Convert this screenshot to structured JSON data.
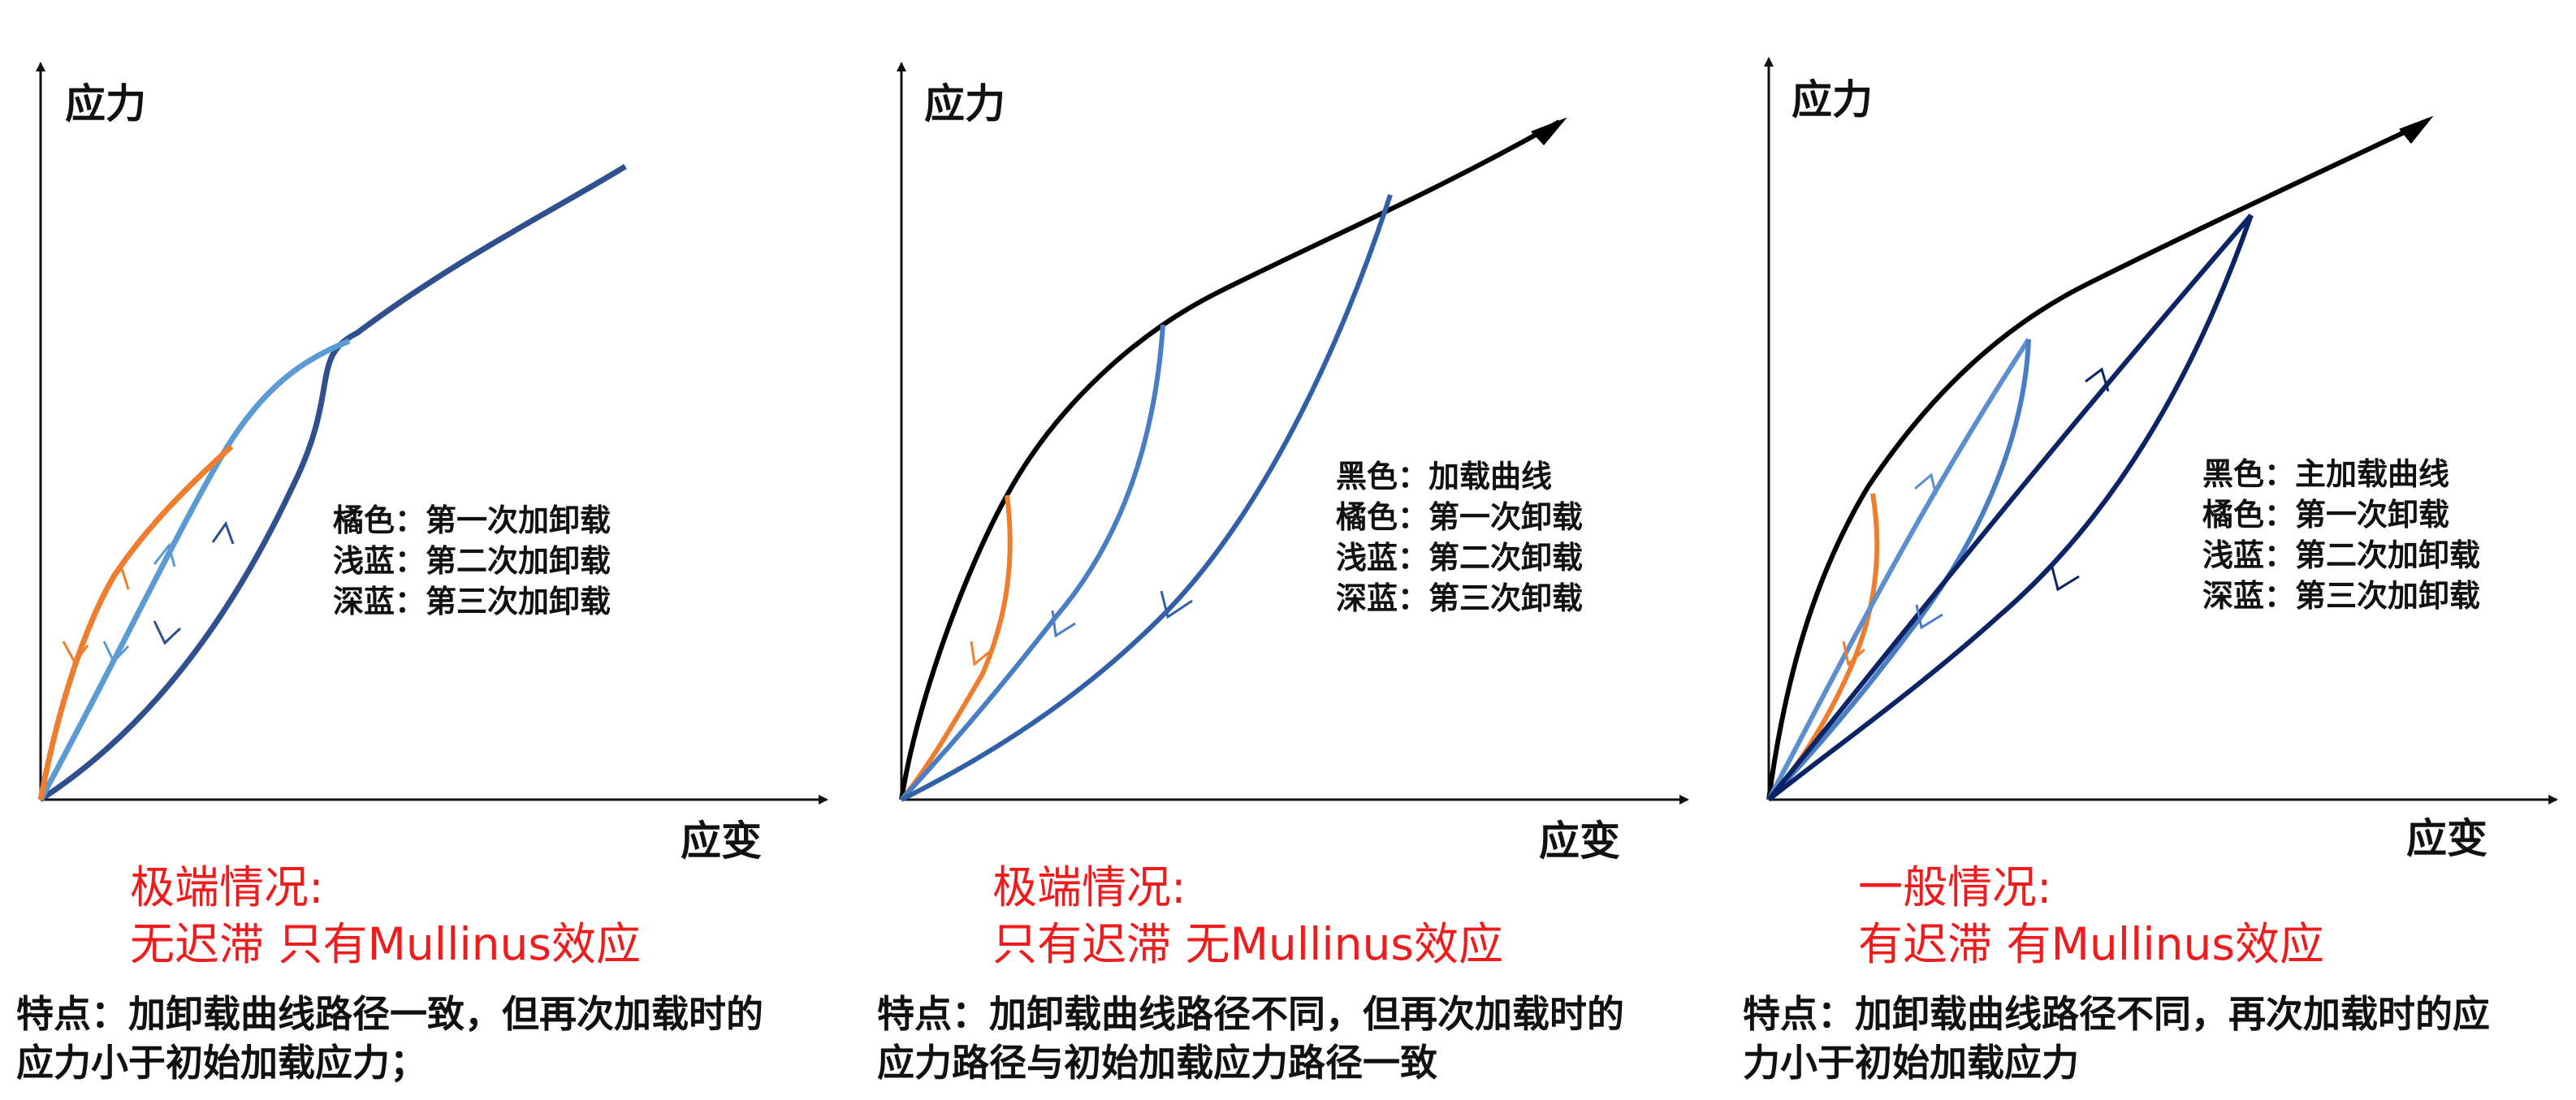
{
  "colors": {
    "axis": "#111111",
    "black_curve": "#000000",
    "orange": "#ee7d2e",
    "light_blue": "#5b9bd5",
    "mid_blue": "#4472c4",
    "dark_blue": "#1f3f7a",
    "navy": "#0c2466",
    "red_text": "#ee1c1c"
  },
  "panels": [
    {
      "y_axis_label": "应力",
      "x_axis_label": "应变",
      "legend": [
        "橘色：第一次加卸载",
        "浅蓝：第二次加卸载",
        "深蓝：第三次加卸载"
      ],
      "case_title": "极端情况:",
      "case_subtitle": "无迟滞 只有Mullinus效应",
      "feature_line1": "特点：加卸载曲线路径一致，但再次加载时的",
      "feature_line2": "应力小于初始加载应力；"
    },
    {
      "y_axis_label": "应力",
      "x_axis_label": "应变",
      "legend": [
        "黑色：加载曲线",
        "橘色：第一次卸载",
        "浅蓝：第二次卸载",
        "深蓝：第三次卸载"
      ],
      "case_title": "极端情况:",
      "case_subtitle": "只有迟滞 无Mullinus效应",
      "feature_line1": "特点：加卸载曲线路径不同，但再次加载时的",
      "feature_line2": "应力路径与初始加载应力路径一致"
    },
    {
      "y_axis_label": "应力",
      "x_axis_label": "应变",
      "legend": [
        "黑色：主加载曲线",
        "橘色：第一次卸载",
        "浅蓝：第二次加卸载",
        "深蓝：第三次加卸载"
      ],
      "case_title": "一般情况:",
      "case_subtitle": "有迟滞 有Mullinus效应",
      "feature_line1": "特点：加卸载曲线路径不同，再次加载时的应",
      "feature_line2": "力小于初始加载应力"
    }
  ]
}
